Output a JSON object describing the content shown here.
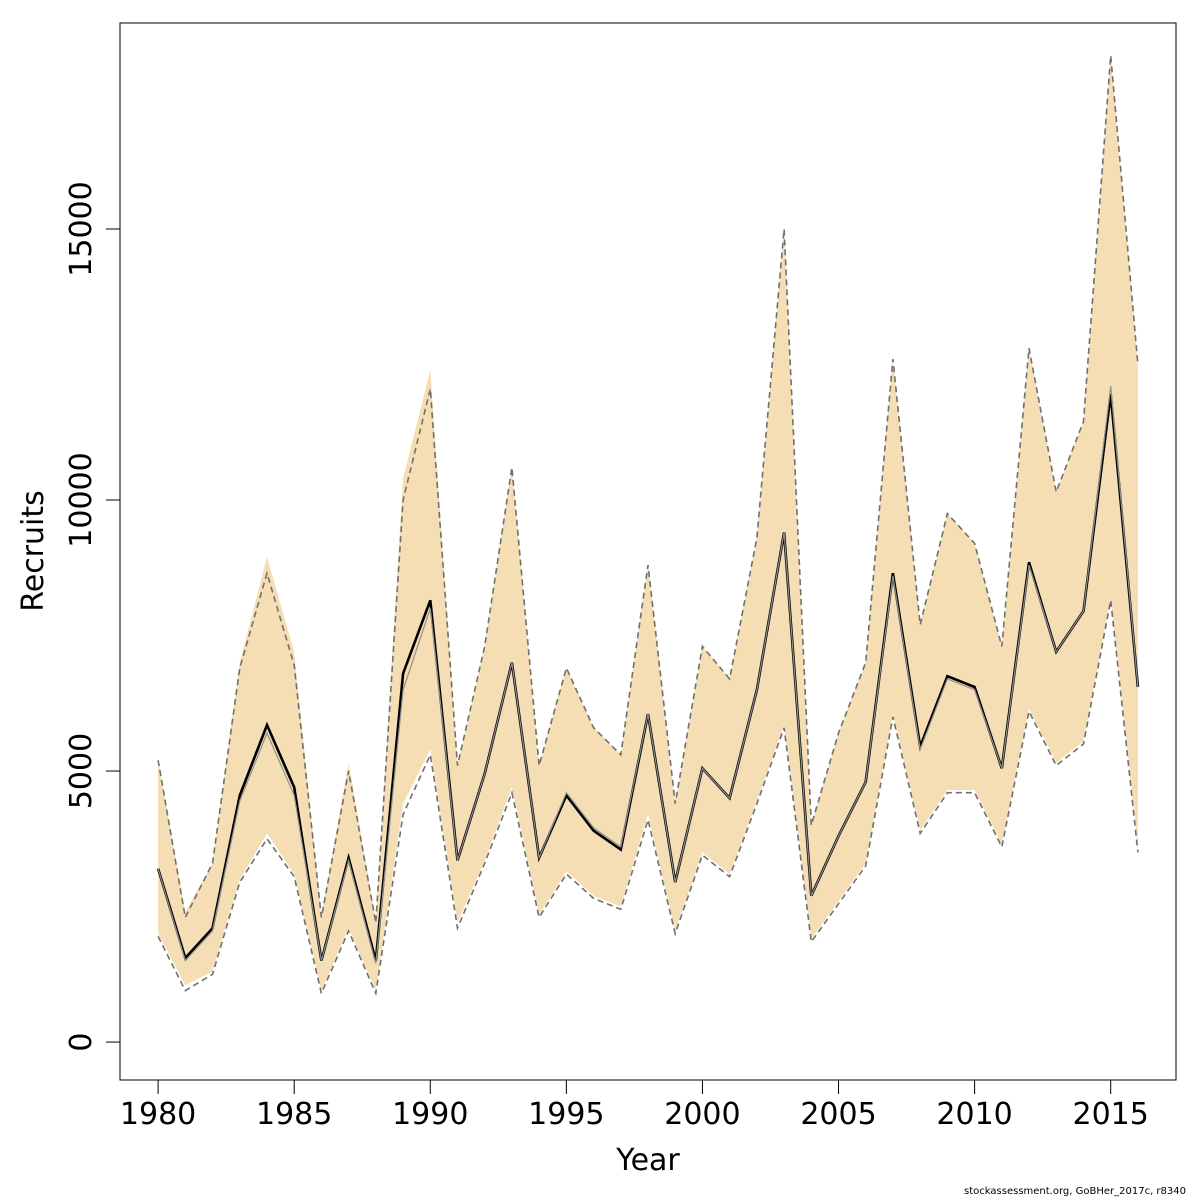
{
  "footer": {
    "text": "stockassessment.org, GoBHer_2017c, r8340"
  },
  "colors": {
    "ci_fill": "#f5deb3",
    "ci_border": "#707070",
    "main_line": "#000000",
    "secondary_line": "#909090"
  },
  "chart_data": {
    "type": "line",
    "title": "",
    "xlabel": "Year",
    "ylabel": "Recruits",
    "xlim": [
      1978.6,
      2017.4
    ],
    "ylim": [
      -700,
      18800
    ],
    "x_ticks": [
      1980,
      1985,
      1990,
      1995,
      2000,
      2005,
      2010,
      2015
    ],
    "y_ticks": [
      0,
      5000,
      10000,
      15000
    ],
    "grid": false,
    "legend": "none",
    "x": [
      1980,
      1981,
      1982,
      1983,
      1984,
      1985,
      1986,
      1987,
      1988,
      1989,
      1990,
      1991,
      1992,
      1993,
      1994,
      1995,
      1996,
      1997,
      1998,
      1999,
      2000,
      2001,
      2002,
      2003,
      2004,
      2005,
      2006,
      2007,
      2008,
      2009,
      2010,
      2011,
      2012,
      2013,
      2014,
      2015,
      2016
    ],
    "series": [
      {
        "role": "estimate",
        "values": [
          3200,
          1550,
          2100,
          4550,
          5850,
          4700,
          1500,
          3400,
          1500,
          6800,
          8150,
          3350,
          4950,
          7000,
          3400,
          4550,
          3900,
          3550,
          6050,
          2950,
          5050,
          4500,
          6500,
          9400,
          2700,
          3800,
          4800,
          8650,
          5450,
          6750,
          6550,
          5050,
          8850,
          7200,
          7950,
          11950,
          6550
        ]
      },
      {
        "role": "estimate-alt",
        "values": [
          3200,
          1500,
          2050,
          4450,
          5700,
          4550,
          1500,
          3350,
          1450,
          6500,
          8000,
          3350,
          4950,
          7000,
          3400,
          4600,
          3950,
          3600,
          6050,
          2950,
          5050,
          4500,
          6500,
          9400,
          2700,
          3800,
          4800,
          8600,
          5400,
          6700,
          6500,
          5050,
          8800,
          7200,
          7950,
          12100,
          6550
        ]
      },
      {
        "role": "upper-bound",
        "values": [
          5200,
          2300,
          3300,
          6900,
          8650,
          6950,
          2300,
          5000,
          2200,
          10000,
          12050,
          5100,
          7300,
          10600,
          5100,
          6900,
          5800,
          5300,
          8800,
          4400,
          7300,
          6700,
          9300,
          15000,
          4000,
          5700,
          7000,
          12600,
          7700,
          9750,
          9200,
          7300,
          12800,
          10150,
          11450,
          18200,
          12500
        ]
      },
      {
        "role": "lower-bound",
        "values": [
          1950,
          950,
          1250,
          2950,
          3750,
          3050,
          900,
          2050,
          900,
          4200,
          5300,
          2100,
          3300,
          4600,
          2300,
          3100,
          2650,
          2450,
          4100,
          2000,
          3450,
          3050,
          4400,
          5800,
          1850,
          2550,
          3250,
          6000,
          3850,
          4600,
          4600,
          3600,
          6100,
          5100,
          5500,
          8150,
          3500
        ]
      },
      {
        "role": "upper-fill",
        "values": [
          5200,
          2400,
          3300,
          7000,
          8950,
          7200,
          2350,
          5150,
          2250,
          10400,
          12400,
          5100,
          7300,
          10600,
          5100,
          6900,
          5800,
          5300,
          8800,
          4400,
          7300,
          6700,
          9300,
          15000,
          4000,
          5700,
          7000,
          12600,
          7700,
          9750,
          9200,
          7300,
          12800,
          10150,
          11450,
          18200,
          12500
        ]
      },
      {
        "role": "lower-fill",
        "values": [
          2000,
          1050,
          1300,
          3000,
          3850,
          3100,
          950,
          2100,
          950,
          4400,
          5400,
          2200,
          3350,
          4700,
          2350,
          3150,
          2700,
          2500,
          4200,
          2050,
          3500,
          3100,
          4450,
          5850,
          1900,
          2600,
          3300,
          6050,
          3900,
          4650,
          4650,
          3650,
          6150,
          5150,
          5550,
          8200,
          3600
        ]
      }
    ]
  }
}
